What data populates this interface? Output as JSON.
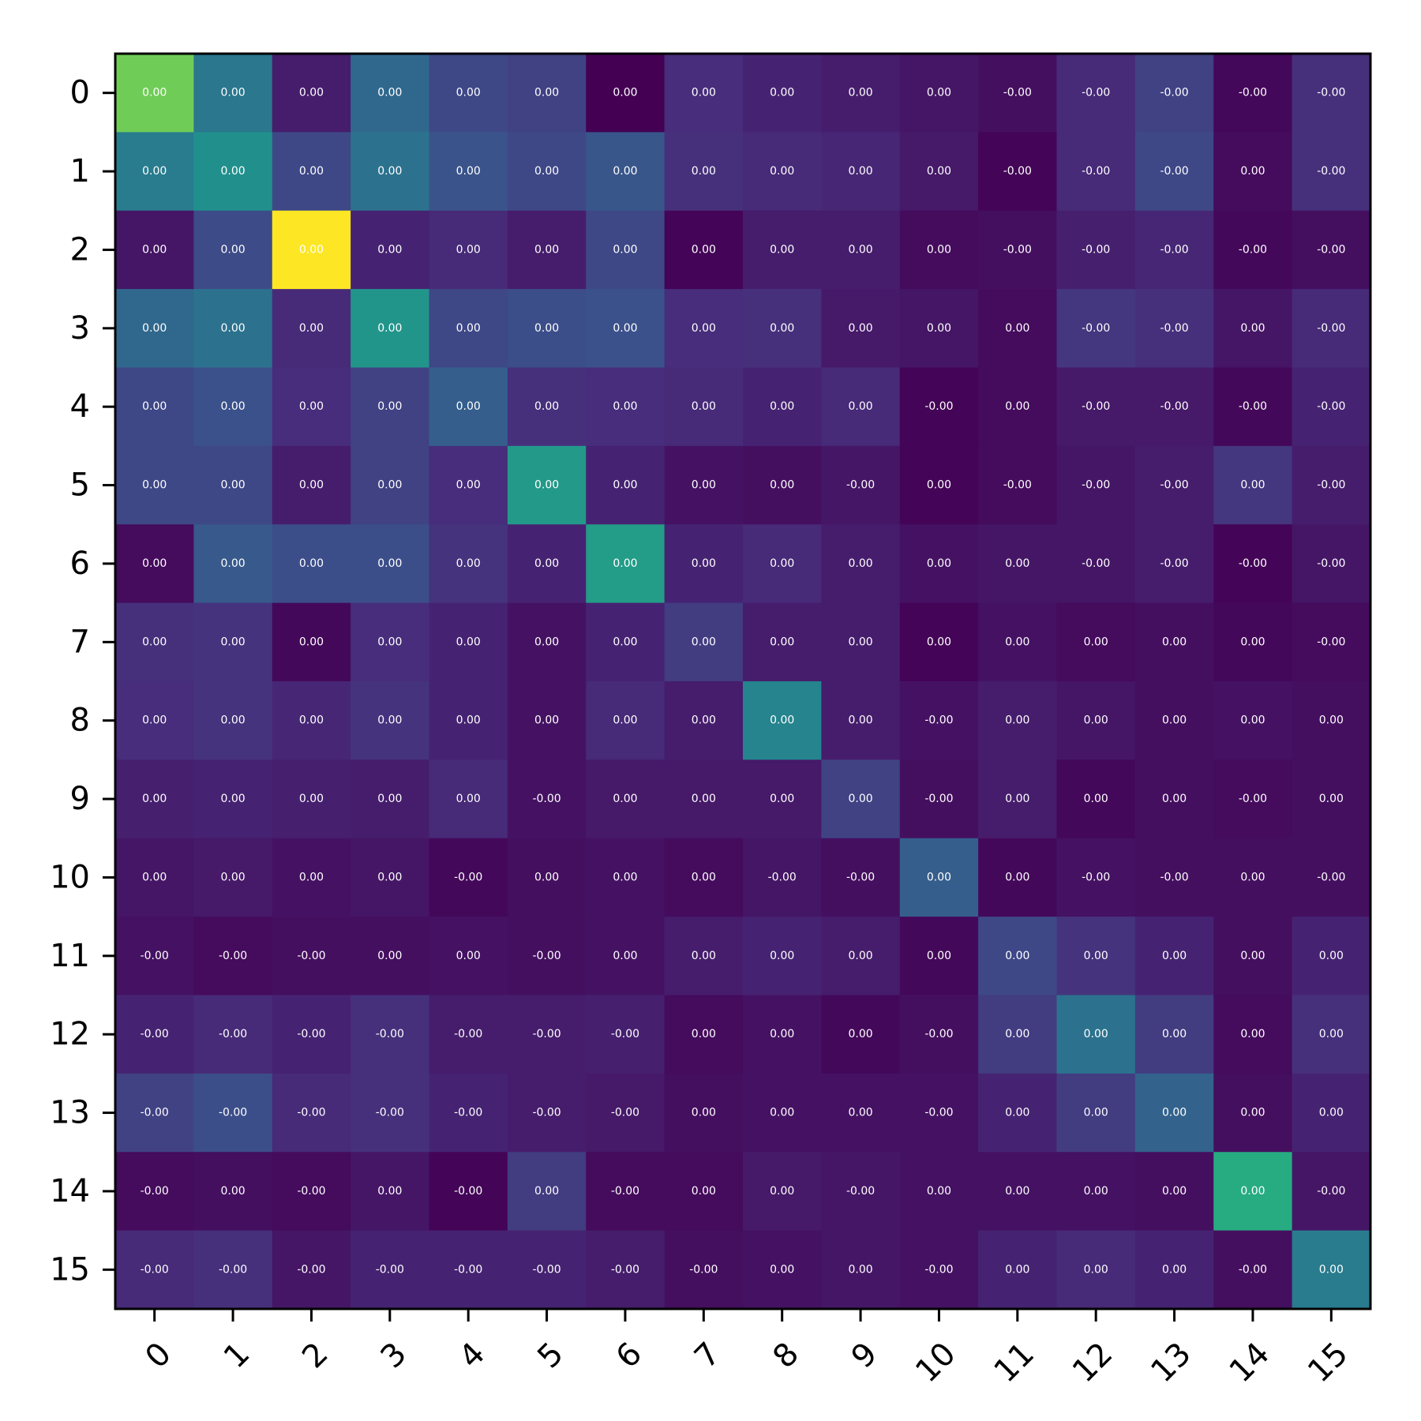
{
  "chart_data": {
    "type": "heatmap",
    "title": "",
    "xlabel": "",
    "ylabel": "",
    "colormap": "viridis",
    "colorbar": false,
    "grid": false,
    "x_tick_labels": [
      "0",
      "1",
      "2",
      "3",
      "4",
      "5",
      "6",
      "7",
      "8",
      "9",
      "10",
      "11",
      "12",
      "13",
      "14",
      "15"
    ],
    "y_tick_labels": [
      "0",
      "1",
      "2",
      "3",
      "4",
      "5",
      "6",
      "7",
      "8",
      "9",
      "10",
      "11",
      "12",
      "13",
      "14",
      "15"
    ],
    "x_tick_rotation_deg": 45,
    "cell_labels": [
      [
        "0.00",
        "0.00",
        "0.00",
        "0.00",
        "0.00",
        "0.00",
        "0.00",
        "0.00",
        "0.00",
        "0.00",
        "0.00",
        "-0.00",
        "-0.00",
        "-0.00",
        "-0.00",
        "-0.00"
      ],
      [
        "0.00",
        "0.00",
        "0.00",
        "0.00",
        "0.00",
        "0.00",
        "0.00",
        "0.00",
        "0.00",
        "0.00",
        "0.00",
        "-0.00",
        "-0.00",
        "-0.00",
        "0.00",
        "-0.00"
      ],
      [
        "0.00",
        "0.00",
        "0.00",
        "0.00",
        "0.00",
        "0.00",
        "0.00",
        "0.00",
        "0.00",
        "0.00",
        "0.00",
        "-0.00",
        "-0.00",
        "-0.00",
        "-0.00",
        "-0.00"
      ],
      [
        "0.00",
        "0.00",
        "0.00",
        "0.00",
        "0.00",
        "0.00",
        "0.00",
        "0.00",
        "0.00",
        "0.00",
        "0.00",
        "0.00",
        "-0.00",
        "-0.00",
        "0.00",
        "-0.00"
      ],
      [
        "0.00",
        "0.00",
        "0.00",
        "0.00",
        "0.00",
        "0.00",
        "0.00",
        "0.00",
        "0.00",
        "0.00",
        "-0.00",
        "0.00",
        "-0.00",
        "-0.00",
        "-0.00",
        "-0.00"
      ],
      [
        "0.00",
        "0.00",
        "0.00",
        "0.00",
        "0.00",
        "0.00",
        "0.00",
        "0.00",
        "0.00",
        "-0.00",
        "0.00",
        "-0.00",
        "-0.00",
        "-0.00",
        "0.00",
        "-0.00"
      ],
      [
        "0.00",
        "0.00",
        "0.00",
        "0.00",
        "0.00",
        "0.00",
        "0.00",
        "0.00",
        "0.00",
        "0.00",
        "0.00",
        "0.00",
        "-0.00",
        "-0.00",
        "-0.00",
        "-0.00"
      ],
      [
        "0.00",
        "0.00",
        "0.00",
        "0.00",
        "0.00",
        "0.00",
        "0.00",
        "0.00",
        "0.00",
        "0.00",
        "0.00",
        "0.00",
        "0.00",
        "0.00",
        "0.00",
        "-0.00"
      ],
      [
        "0.00",
        "0.00",
        "0.00",
        "0.00",
        "0.00",
        "0.00",
        "0.00",
        "0.00",
        "0.00",
        "0.00",
        "-0.00",
        "0.00",
        "0.00",
        "0.00",
        "0.00",
        "0.00"
      ],
      [
        "0.00",
        "0.00",
        "0.00",
        "0.00",
        "0.00",
        "-0.00",
        "0.00",
        "0.00",
        "0.00",
        "0.00",
        "-0.00",
        "0.00",
        "0.00",
        "0.00",
        "-0.00",
        "0.00"
      ],
      [
        "0.00",
        "0.00",
        "0.00",
        "0.00",
        "-0.00",
        "0.00",
        "0.00",
        "0.00",
        "-0.00",
        "-0.00",
        "0.00",
        "0.00",
        "-0.00",
        "-0.00",
        "0.00",
        "-0.00"
      ],
      [
        "-0.00",
        "-0.00",
        "-0.00",
        "0.00",
        "0.00",
        "-0.00",
        "0.00",
        "0.00",
        "0.00",
        "0.00",
        "0.00",
        "0.00",
        "0.00",
        "0.00",
        "0.00",
        "0.00"
      ],
      [
        "-0.00",
        "-0.00",
        "-0.00",
        "-0.00",
        "-0.00",
        "-0.00",
        "-0.00",
        "0.00",
        "0.00",
        "0.00",
        "-0.00",
        "0.00",
        "0.00",
        "0.00",
        "0.00",
        "0.00"
      ],
      [
        "-0.00",
        "-0.00",
        "-0.00",
        "-0.00",
        "-0.00",
        "-0.00",
        "-0.00",
        "0.00",
        "0.00",
        "0.00",
        "-0.00",
        "0.00",
        "0.00",
        "0.00",
        "0.00",
        "0.00"
      ],
      [
        "-0.00",
        "0.00",
        "-0.00",
        "0.00",
        "-0.00",
        "0.00",
        "-0.00",
        "0.00",
        "0.00",
        "-0.00",
        "0.00",
        "0.00",
        "0.00",
        "0.00",
        "0.00",
        "-0.00"
      ],
      [
        "-0.00",
        "-0.00",
        "-0.00",
        "-0.00",
        "-0.00",
        "-0.00",
        "-0.00",
        "-0.00",
        "0.00",
        "0.00",
        "-0.00",
        "0.00",
        "0.00",
        "0.00",
        "-0.00",
        "0.00"
      ]
    ],
    "color_intensity": [
      [
        0.78,
        0.4,
        0.08,
        0.34,
        0.22,
        0.2,
        0.0,
        0.13,
        0.1,
        0.08,
        0.06,
        0.04,
        0.12,
        0.2,
        0.02,
        0.14
      ],
      [
        0.42,
        0.5,
        0.22,
        0.38,
        0.26,
        0.22,
        0.27,
        0.14,
        0.12,
        0.11,
        0.07,
        0.01,
        0.12,
        0.22,
        0.03,
        0.14
      ],
      [
        0.06,
        0.23,
        1.0,
        0.1,
        0.12,
        0.08,
        0.22,
        0.01,
        0.08,
        0.08,
        0.03,
        0.04,
        0.09,
        0.11,
        0.02,
        0.04
      ],
      [
        0.34,
        0.38,
        0.12,
        0.52,
        0.22,
        0.24,
        0.25,
        0.13,
        0.14,
        0.07,
        0.06,
        0.03,
        0.16,
        0.14,
        0.06,
        0.12
      ],
      [
        0.22,
        0.25,
        0.13,
        0.2,
        0.3,
        0.14,
        0.13,
        0.12,
        0.1,
        0.12,
        0.01,
        0.03,
        0.07,
        0.07,
        0.02,
        0.1
      ],
      [
        0.22,
        0.22,
        0.08,
        0.2,
        0.13,
        0.54,
        0.1,
        0.05,
        0.04,
        0.06,
        0.01,
        0.03,
        0.06,
        0.08,
        0.16,
        0.08
      ],
      [
        0.03,
        0.28,
        0.24,
        0.24,
        0.15,
        0.1,
        0.55,
        0.1,
        0.12,
        0.08,
        0.05,
        0.06,
        0.06,
        0.08,
        0.01,
        0.06
      ],
      [
        0.14,
        0.15,
        0.02,
        0.13,
        0.1,
        0.05,
        0.1,
        0.18,
        0.08,
        0.08,
        0.01,
        0.05,
        0.03,
        0.04,
        0.02,
        0.03
      ],
      [
        0.13,
        0.15,
        0.11,
        0.15,
        0.1,
        0.05,
        0.12,
        0.08,
        0.45,
        0.08,
        0.05,
        0.08,
        0.06,
        0.04,
        0.05,
        0.04
      ],
      [
        0.09,
        0.1,
        0.09,
        0.08,
        0.12,
        0.05,
        0.07,
        0.07,
        0.07,
        0.2,
        0.04,
        0.08,
        0.02,
        0.04,
        0.03,
        0.04
      ],
      [
        0.06,
        0.07,
        0.05,
        0.06,
        0.02,
        0.04,
        0.05,
        0.03,
        0.06,
        0.04,
        0.3,
        0.02,
        0.05,
        0.04,
        0.04,
        0.04
      ],
      [
        0.05,
        0.03,
        0.04,
        0.04,
        0.05,
        0.04,
        0.05,
        0.08,
        0.1,
        0.08,
        0.02,
        0.22,
        0.15,
        0.1,
        0.04,
        0.1
      ],
      [
        0.1,
        0.12,
        0.1,
        0.14,
        0.08,
        0.08,
        0.09,
        0.03,
        0.05,
        0.02,
        0.04,
        0.18,
        0.38,
        0.18,
        0.03,
        0.14
      ],
      [
        0.2,
        0.24,
        0.12,
        0.14,
        0.1,
        0.08,
        0.07,
        0.04,
        0.05,
        0.05,
        0.05,
        0.1,
        0.18,
        0.32,
        0.04,
        0.1
      ],
      [
        0.03,
        0.04,
        0.03,
        0.06,
        0.01,
        0.18,
        0.03,
        0.03,
        0.07,
        0.06,
        0.05,
        0.05,
        0.05,
        0.04,
        0.62,
        0.06
      ],
      [
        0.12,
        0.14,
        0.06,
        0.1,
        0.1,
        0.1,
        0.08,
        0.04,
        0.05,
        0.06,
        0.05,
        0.1,
        0.12,
        0.1,
        0.04,
        0.42
      ]
    ]
  }
}
